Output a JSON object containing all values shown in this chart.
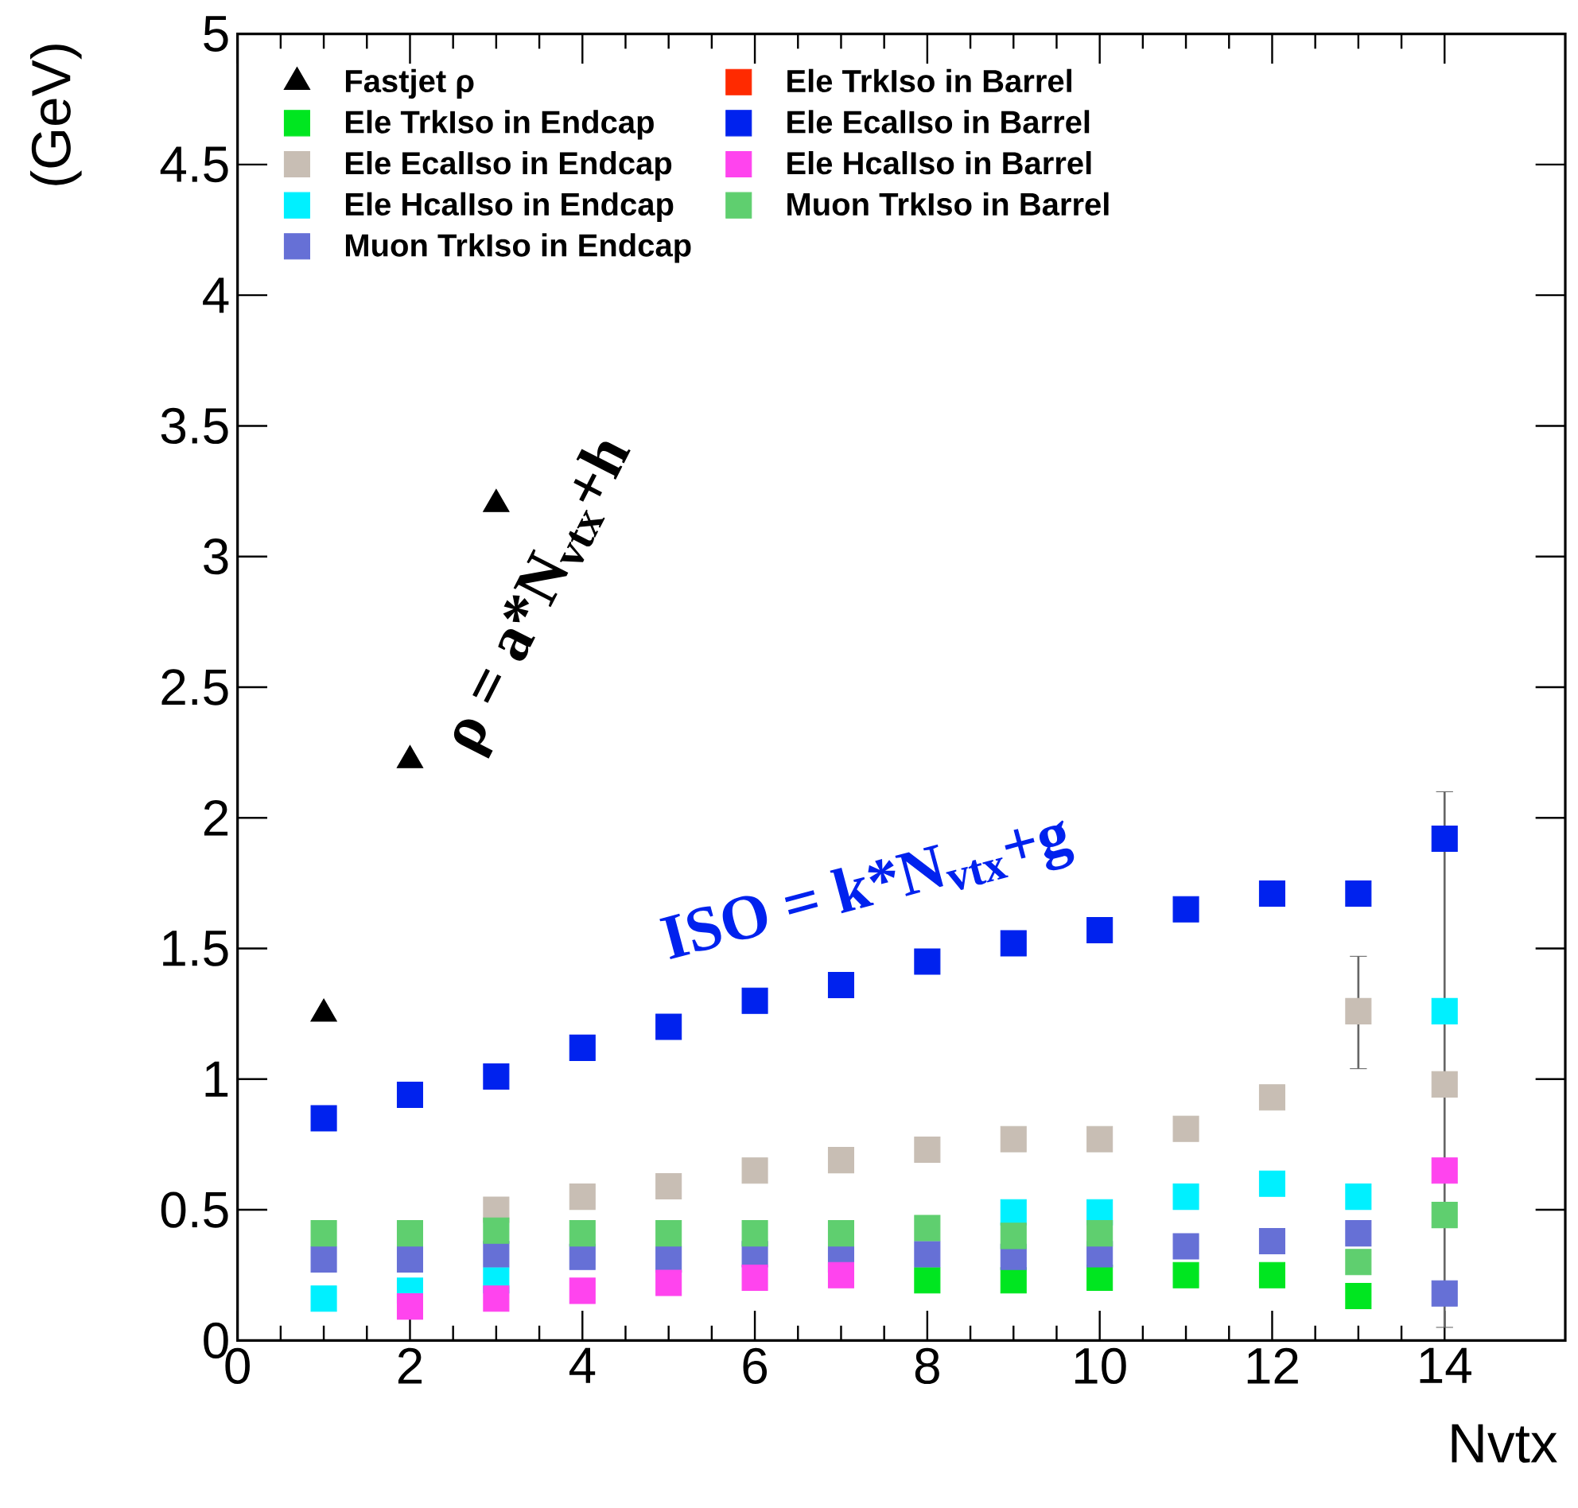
{
  "chart_data": {
    "type": "scatter",
    "xlabel": "Nvtx",
    "ylabel": "(GeV)",
    "xlim": [
      0,
      15.4
    ],
    "ylim": [
      0,
      5
    ],
    "xticks": [
      0,
      2,
      4,
      6,
      8,
      10,
      12,
      14
    ],
    "yticks": [
      0,
      0.5,
      1,
      1.5,
      2,
      2.5,
      3,
      3.5,
      4,
      4.5,
      5
    ],
    "x": [
      1,
      2,
      3,
      4,
      5,
      6,
      7,
      8,
      9,
      10,
      11,
      12,
      13,
      14
    ],
    "marker": "square",
    "legend": "top left",
    "grid": false,
    "annotations": [
      "ρ = a*N$_{vtx}$+h",
      "ISO = k*N$_{vtx}$+g"
    ],
    "series": [
      {
        "name": "Fastjet ρ",
        "color": "#000000",
        "marker": "triangle",
        "values": [
          1.25,
          2.22,
          3.2,
          null,
          null,
          null,
          null,
          null,
          null,
          null,
          null,
          null,
          null,
          null
        ]
      },
      {
        "name": "Ele TrkIso in Endcap",
        "color": "#00e620",
        "values": [
          null,
          null,
          null,
          null,
          null,
          null,
          null,
          0.23,
          0.23,
          0.24,
          0.25,
          0.25,
          0.17,
          null
        ]
      },
      {
        "name": "Ele EcalIso in Endcap",
        "color": "#c8beb4",
        "values": [
          null,
          null,
          0.5,
          0.55,
          0.59,
          0.65,
          0.69,
          0.73,
          0.77,
          0.77,
          0.81,
          0.93,
          1.26,
          0.98
        ],
        "errors": [
          null,
          null,
          null,
          null,
          null,
          null,
          null,
          null,
          null,
          null,
          null,
          null,
          [
            1.04,
            1.47
          ],
          null
        ]
      },
      {
        "name": "Ele HcalIso in Endcap",
        "color": "#00f0ff",
        "values": [
          0.16,
          0.19,
          0.23,
          null,
          null,
          null,
          null,
          null,
          0.49,
          0.49,
          0.55,
          0.6,
          0.55,
          1.26
        ]
      },
      {
        "name": "Muon TrkIso in Endcap",
        "color": "#6670d6",
        "values": [
          0.31,
          0.31,
          0.33,
          0.32,
          0.31,
          0.33,
          0.31,
          0.33,
          0.32,
          0.33,
          0.36,
          0.38,
          0.41,
          0.18
        ]
      },
      {
        "name": "Ele TrkIso in Barrel",
        "color": "#ff2a00",
        "values": [
          null,
          null,
          null,
          null,
          null,
          null,
          null,
          null,
          null,
          null,
          null,
          null,
          null,
          null
        ]
      },
      {
        "name": "Ele EcalIso in Barrel",
        "color": "#0022ee",
        "values": [
          0.85,
          0.94,
          1.01,
          1.12,
          1.2,
          1.3,
          1.36,
          1.45,
          1.52,
          1.57,
          1.65,
          1.71,
          1.71,
          1.92
        ],
        "errors": [
          null,
          null,
          null,
          null,
          null,
          null,
          null,
          null,
          null,
          null,
          null,
          null,
          null,
          [
            0.05,
            2.1
          ]
        ]
      },
      {
        "name": "Ele HcalIso in Barrel",
        "color": "#ff44ee",
        "values": [
          null,
          0.13,
          0.16,
          0.19,
          0.22,
          0.24,
          0.25,
          null,
          null,
          null,
          null,
          null,
          null,
          0.65
        ]
      },
      {
        "name": "Muon TrkIso in Barrel",
        "color": "#5fcf6f",
        "values": [
          0.41,
          0.41,
          0.42,
          0.41,
          0.41,
          0.41,
          0.41,
          0.43,
          0.4,
          0.41,
          null,
          null,
          0.3,
          0.48
        ]
      }
    ]
  }
}
